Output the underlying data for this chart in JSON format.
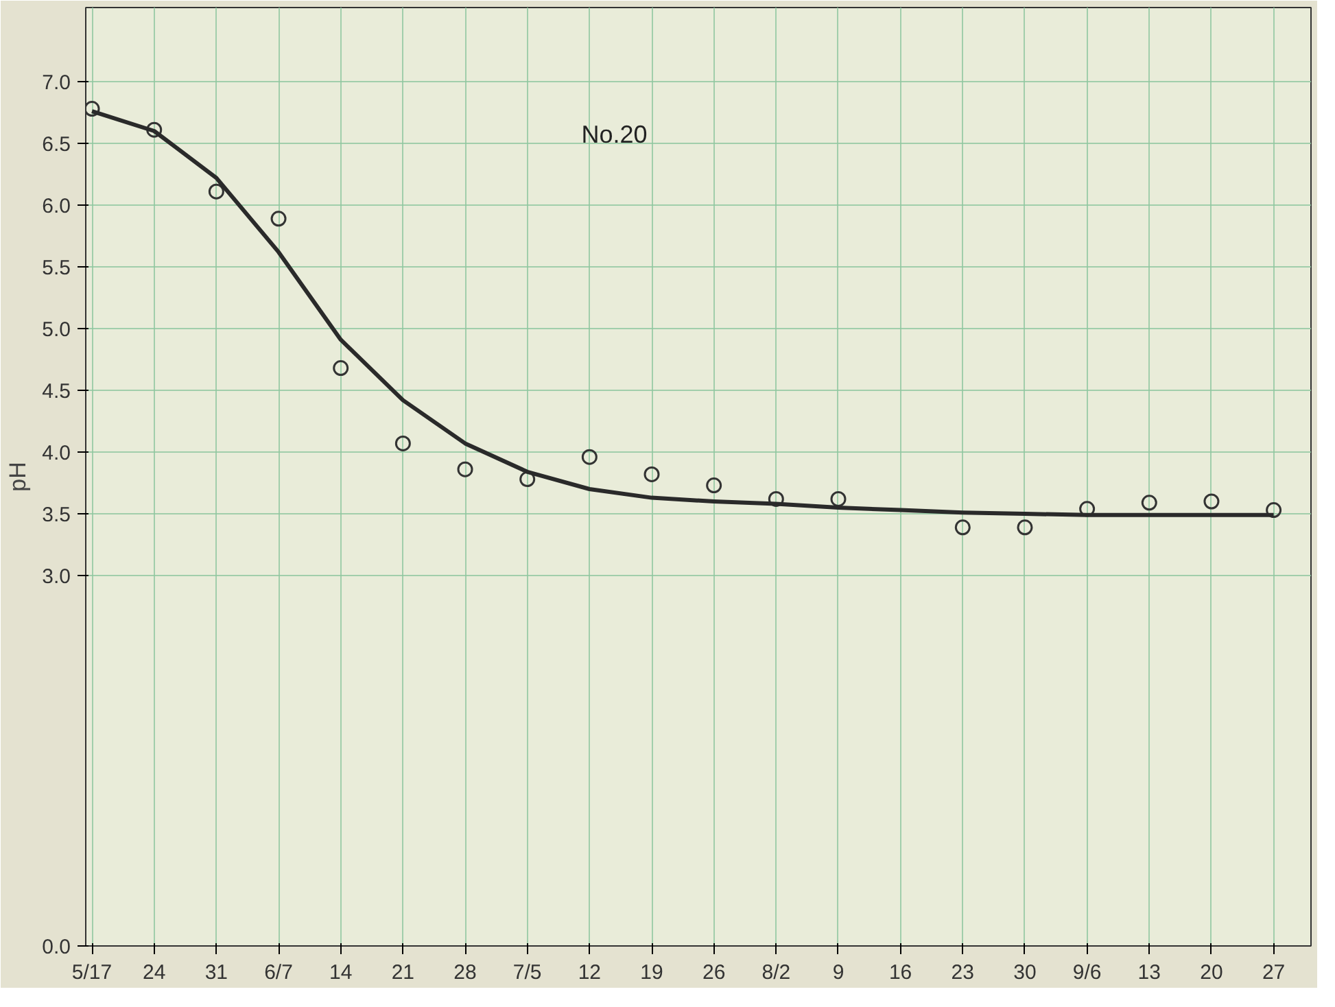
{
  "chart_data": {
    "type": "scatter",
    "categories": [
      "5/17",
      "24",
      "31",
      "6/7",
      "14",
      "21",
      "28",
      "7/5",
      "12",
      "19",
      "26",
      "8/2",
      "9",
      "16",
      "23",
      "30",
      "9/6",
      "13",
      "20",
      "27"
    ],
    "series": [
      {
        "color": "#333333",
        "marker": "circle",
        "values": [
          6.78,
          6.61,
          6.11,
          5.89,
          4.68,
          4.07,
          3.86,
          3.78,
          3.96,
          3.82,
          3.73,
          3.62,
          3.62,
          null,
          3.39,
          3.39,
          3.54,
          3.59,
          3.6,
          3.53
        ]
      },
      {
        "type": "line",
        "color": "#2a2a2a",
        "line_style": "solid",
        "values": [
          6.76,
          6.6,
          6.22,
          5.62,
          4.91,
          4.42,
          4.07,
          3.84,
          3.7,
          3.63,
          3.6,
          3.58,
          3.55,
          3.53,
          3.51,
          3.5,
          3.49,
          3.49,
          3.49,
          3.49
        ]
      }
    ],
    "ylabel": "pH",
    "annotations": [
      "No.20"
    ],
    "ylim": [
      0,
      7.6
    ],
    "yticks": [
      {
        "value": 0,
        "label": "0.0"
      },
      {
        "value": 3,
        "label": "3.0"
      },
      3.5,
      {
        "value": 4,
        "label": "4.0"
      },
      4.5,
      {
        "value": 5,
        "label": "5.0"
      },
      5.5,
      {
        "value": 6,
        "label": "6.0"
      },
      6.5,
      {
        "value": 7,
        "label": "7.0"
      }
    ],
    "grid": true
  }
}
